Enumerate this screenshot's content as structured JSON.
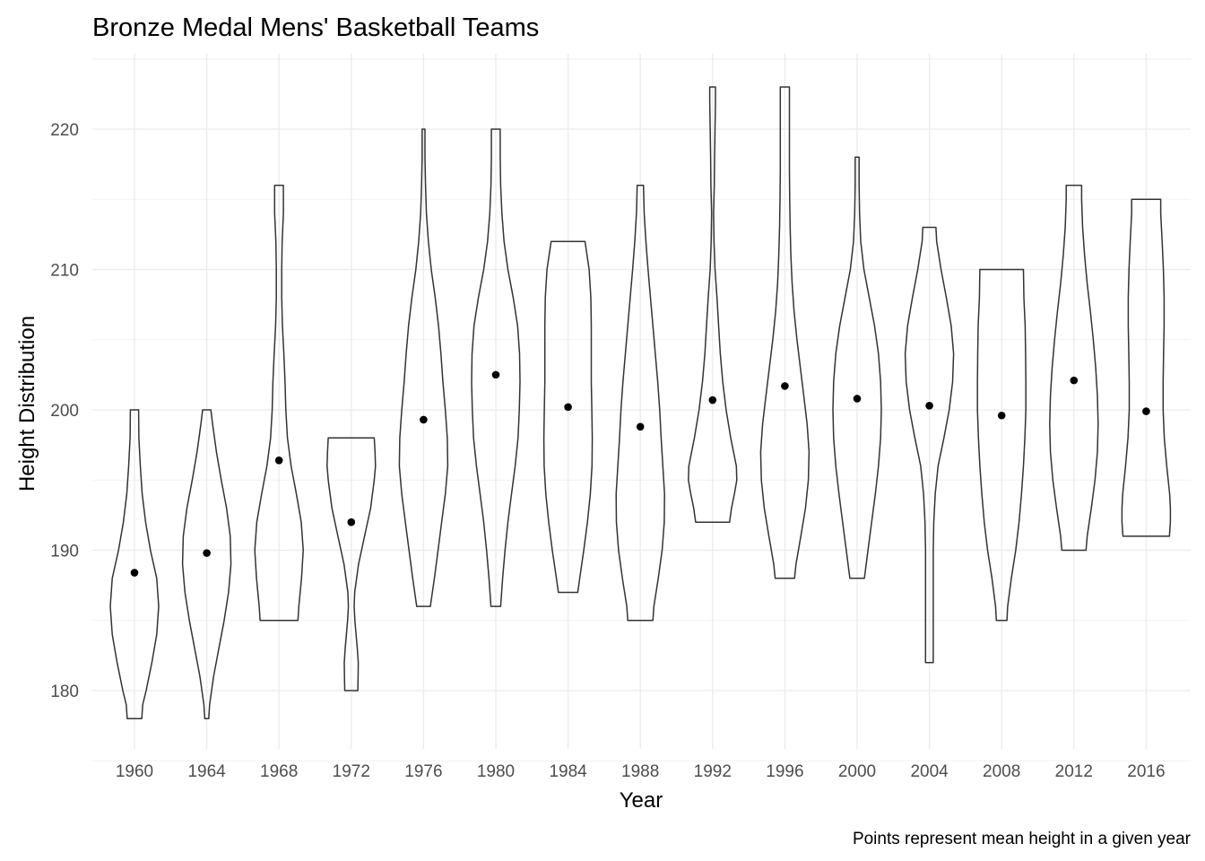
{
  "chart_data": {
    "type": "violin",
    "title": "Bronze Medal Mens' Basketball Teams",
    "xlabel": "Year",
    "ylabel": "Height Distribution",
    "caption": "Points represent mean height in a given year",
    "categories": [
      "1960",
      "1964",
      "1968",
      "1972",
      "1976",
      "1980",
      "1984",
      "1988",
      "1992",
      "1996",
      "2000",
      "2004",
      "2008",
      "2012",
      "2016"
    ],
    "y_ticks": [
      180,
      190,
      200,
      210,
      220
    ],
    "ylim": [
      175,
      225
    ],
    "grid": true,
    "legend": "none",
    "violins": [
      {
        "year": "1960",
        "min": 178,
        "max": 200,
        "mean": 188.4,
        "profile": [
          [
            178,
            0.3
          ],
          [
            179,
            0.34
          ],
          [
            180,
            0.48
          ],
          [
            182,
            0.72
          ],
          [
            184,
            0.92
          ],
          [
            186,
            1.0
          ],
          [
            188,
            0.92
          ],
          [
            190,
            0.66
          ],
          [
            192,
            0.46
          ],
          [
            194,
            0.32
          ],
          [
            196,
            0.24
          ],
          [
            198,
            0.18
          ],
          [
            200,
            0.17
          ]
        ]
      },
      {
        "year": "1964",
        "min": 178,
        "max": 200,
        "mean": 189.8,
        "profile": [
          [
            178,
            0.08
          ],
          [
            179,
            0.12
          ],
          [
            181,
            0.28
          ],
          [
            183,
            0.5
          ],
          [
            185,
            0.72
          ],
          [
            187,
            0.9
          ],
          [
            189,
            1.0
          ],
          [
            191,
            0.97
          ],
          [
            193,
            0.82
          ],
          [
            195,
            0.6
          ],
          [
            197,
            0.4
          ],
          [
            199,
            0.24
          ],
          [
            200,
            0.17
          ]
        ]
      },
      {
        "year": "1968",
        "min": 185,
        "max": 216,
        "mean": 196.4,
        "profile": [
          [
            185,
            0.78
          ],
          [
            186,
            0.82
          ],
          [
            188,
            0.93
          ],
          [
            190,
            1.0
          ],
          [
            192,
            0.92
          ],
          [
            194,
            0.72
          ],
          [
            196,
            0.5
          ],
          [
            198,
            0.35
          ],
          [
            200,
            0.28
          ],
          [
            202,
            0.25
          ],
          [
            204,
            0.2
          ],
          [
            206,
            0.14
          ],
          [
            208,
            0.11
          ],
          [
            210,
            0.11
          ],
          [
            212,
            0.13
          ],
          [
            214,
            0.18
          ],
          [
            216,
            0.18
          ]
        ]
      },
      {
        "year": "1972",
        "min": 180,
        "max": 198,
        "mean": 192.0,
        "profile": [
          [
            180,
            0.27
          ],
          [
            181,
            0.28
          ],
          [
            182,
            0.29
          ],
          [
            183,
            0.25
          ],
          [
            185,
            0.15
          ],
          [
            186,
            0.12
          ],
          [
            187,
            0.14
          ],
          [
            189,
            0.3
          ],
          [
            191,
            0.55
          ],
          [
            193,
            0.8
          ],
          [
            195,
            0.95
          ],
          [
            196,
            1.0
          ],
          [
            197,
            0.98
          ],
          [
            198,
            0.95
          ]
        ]
      },
      {
        "year": "1976",
        "min": 186,
        "max": 220,
        "mean": 199.3,
        "profile": [
          [
            186,
            0.28
          ],
          [
            188,
            0.45
          ],
          [
            190,
            0.6
          ],
          [
            192,
            0.75
          ],
          [
            194,
            0.9
          ],
          [
            196,
            1.0
          ],
          [
            198,
            0.98
          ],
          [
            200,
            0.9
          ],
          [
            202,
            0.8
          ],
          [
            204,
            0.72
          ],
          [
            206,
            0.62
          ],
          [
            208,
            0.48
          ],
          [
            210,
            0.32
          ],
          [
            212,
            0.2
          ],
          [
            214,
            0.12
          ],
          [
            216,
            0.08
          ],
          [
            218,
            0.06
          ],
          [
            220,
            0.06
          ]
        ]
      },
      {
        "year": "1980",
        "min": 186,
        "max": 220,
        "mean": 202.5,
        "profile": [
          [
            186,
            0.2
          ],
          [
            188,
            0.28
          ],
          [
            190,
            0.38
          ],
          [
            192,
            0.5
          ],
          [
            194,
            0.65
          ],
          [
            196,
            0.8
          ],
          [
            198,
            0.92
          ],
          [
            200,
            0.97
          ],
          [
            202,
            1.0
          ],
          [
            204,
            0.98
          ],
          [
            206,
            0.9
          ],
          [
            208,
            0.72
          ],
          [
            210,
            0.5
          ],
          [
            212,
            0.34
          ],
          [
            214,
            0.25
          ],
          [
            216,
            0.2
          ],
          [
            218,
            0.18
          ],
          [
            220,
            0.18
          ]
        ]
      },
      {
        "year": "1984",
        "min": 187,
        "max": 212,
        "mean": 200.2,
        "profile": [
          [
            187,
            0.4
          ],
          [
            188,
            0.48
          ],
          [
            190,
            0.65
          ],
          [
            192,
            0.8
          ],
          [
            194,
            0.92
          ],
          [
            196,
            0.99
          ],
          [
            198,
            1.0
          ],
          [
            200,
            0.98
          ],
          [
            202,
            0.96
          ],
          [
            204,
            0.96
          ],
          [
            206,
            0.96
          ],
          [
            208,
            0.94
          ],
          [
            210,
            0.87
          ],
          [
            212,
            0.7
          ]
        ]
      },
      {
        "year": "1988",
        "min": 185,
        "max": 216,
        "mean": 198.8,
        "profile": [
          [
            185,
            0.52
          ],
          [
            186,
            0.56
          ],
          [
            188,
            0.74
          ],
          [
            190,
            0.9
          ],
          [
            192,
            0.99
          ],
          [
            194,
            1.0
          ],
          [
            196,
            0.93
          ],
          [
            198,
            0.86
          ],
          [
            200,
            0.8
          ],
          [
            202,
            0.72
          ],
          [
            204,
            0.62
          ],
          [
            206,
            0.52
          ],
          [
            208,
            0.42
          ],
          [
            210,
            0.32
          ],
          [
            212,
            0.23
          ],
          [
            214,
            0.16
          ],
          [
            216,
            0.13
          ]
        ]
      },
      {
        "year": "1992",
        "min": 192,
        "max": 223,
        "mean": 200.7,
        "profile": [
          [
            192,
            0.7
          ],
          [
            193,
            0.78
          ],
          [
            194,
            0.9
          ],
          [
            195,
            1.0
          ],
          [
            196,
            0.98
          ],
          [
            198,
            0.75
          ],
          [
            200,
            0.56
          ],
          [
            202,
            0.42
          ],
          [
            204,
            0.32
          ],
          [
            206,
            0.25
          ],
          [
            208,
            0.18
          ],
          [
            210,
            0.1
          ],
          [
            212,
            0.06
          ],
          [
            214,
            0.04
          ],
          [
            216,
            0.07
          ],
          [
            218,
            0.08
          ],
          [
            220,
            0.1
          ],
          [
            222,
            0.12
          ],
          [
            223,
            0.12
          ]
        ]
      },
      {
        "year": "1996",
        "min": 188,
        "max": 223,
        "mean": 201.7,
        "profile": [
          [
            188,
            0.4
          ],
          [
            189,
            0.46
          ],
          [
            191,
            0.66
          ],
          [
            193,
            0.85
          ],
          [
            195,
            0.97
          ],
          [
            197,
            1.0
          ],
          [
            199,
            0.92
          ],
          [
            201,
            0.78
          ],
          [
            203,
            0.64
          ],
          [
            205,
            0.5
          ],
          [
            207,
            0.38
          ],
          [
            209,
            0.3
          ],
          [
            211,
            0.25
          ],
          [
            213,
            0.22
          ],
          [
            215,
            0.2
          ],
          [
            217,
            0.19
          ],
          [
            219,
            0.19
          ],
          [
            221,
            0.19
          ],
          [
            223,
            0.19
          ]
        ]
      },
      {
        "year": "2000",
        "min": 188,
        "max": 218,
        "mean": 200.8,
        "profile": [
          [
            188,
            0.3
          ],
          [
            190,
            0.45
          ],
          [
            192,
            0.6
          ],
          [
            194,
            0.75
          ],
          [
            196,
            0.88
          ],
          [
            198,
            0.97
          ],
          [
            200,
            1.0
          ],
          [
            202,
            0.97
          ],
          [
            204,
            0.88
          ],
          [
            206,
            0.72
          ],
          [
            208,
            0.5
          ],
          [
            210,
            0.28
          ],
          [
            212,
            0.15
          ],
          [
            214,
            0.1
          ],
          [
            216,
            0.08
          ],
          [
            218,
            0.08
          ]
        ]
      },
      {
        "year": "2004",
        "min": 182,
        "max": 213,
        "mean": 200.3,
        "profile": [
          [
            182,
            0.16
          ],
          [
            184,
            0.16
          ],
          [
            186,
            0.16
          ],
          [
            188,
            0.16
          ],
          [
            190,
            0.16
          ],
          [
            192,
            0.18
          ],
          [
            194,
            0.24
          ],
          [
            196,
            0.36
          ],
          [
            198,
            0.6
          ],
          [
            200,
            0.82
          ],
          [
            202,
            0.96
          ],
          [
            204,
            1.0
          ],
          [
            206,
            0.9
          ],
          [
            208,
            0.7
          ],
          [
            210,
            0.48
          ],
          [
            212,
            0.3
          ],
          [
            213,
            0.27
          ]
        ]
      },
      {
        "year": "2008",
        "min": 185,
        "max": 210,
        "mean": 199.6,
        "profile": [
          [
            185,
            0.22
          ],
          [
            186,
            0.25
          ],
          [
            188,
            0.4
          ],
          [
            190,
            0.58
          ],
          [
            192,
            0.72
          ],
          [
            194,
            0.82
          ],
          [
            196,
            0.9
          ],
          [
            198,
            0.96
          ],
          [
            200,
            1.0
          ],
          [
            202,
            1.0
          ],
          [
            204,
            0.99
          ],
          [
            206,
            0.97
          ],
          [
            208,
            0.92
          ],
          [
            210,
            0.9
          ]
        ]
      },
      {
        "year": "2012",
        "min": 190,
        "max": 216,
        "mean": 202.1,
        "profile": [
          [
            190,
            0.5
          ],
          [
            191,
            0.55
          ],
          [
            193,
            0.72
          ],
          [
            195,
            0.87
          ],
          [
            197,
            0.97
          ],
          [
            199,
            1.0
          ],
          [
            201,
            0.97
          ],
          [
            203,
            0.9
          ],
          [
            205,
            0.8
          ],
          [
            207,
            0.68
          ],
          [
            209,
            0.55
          ],
          [
            211,
            0.44
          ],
          [
            213,
            0.36
          ],
          [
            215,
            0.32
          ],
          [
            216,
            0.32
          ]
        ]
      },
      {
        "year": "2016",
        "min": 191,
        "max": 215,
        "mean": 199.9,
        "profile": [
          [
            191,
            0.96
          ],
          [
            192,
            1.0
          ],
          [
            193,
            1.0
          ],
          [
            194,
            0.97
          ],
          [
            196,
            0.85
          ],
          [
            198,
            0.75
          ],
          [
            200,
            0.7
          ],
          [
            202,
            0.7
          ],
          [
            204,
            0.72
          ],
          [
            206,
            0.74
          ],
          [
            208,
            0.74
          ],
          [
            210,
            0.71
          ],
          [
            212,
            0.66
          ],
          [
            214,
            0.6
          ],
          [
            215,
            0.6
          ]
        ]
      }
    ]
  }
}
